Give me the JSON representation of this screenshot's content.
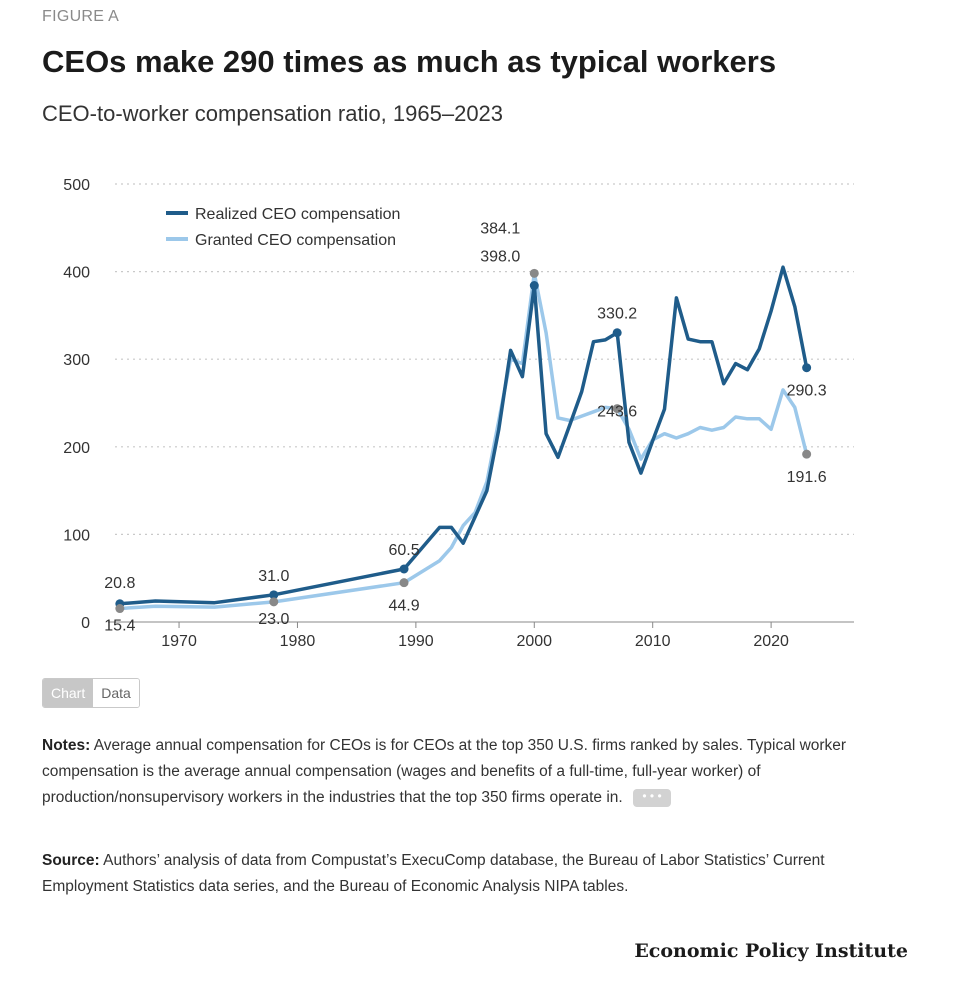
{
  "header": {
    "figure_label": "FIGURE A",
    "title": "CEOs make 290 times as much as typical workers",
    "subtitle": "CEO-to-worker compensation ratio, 1965–2023"
  },
  "chart_data": {
    "type": "line",
    "title": "CEOs make 290 times as much as typical workers",
    "subtitle": "CEO-to-worker compensation ratio, 1965–2023",
    "xlabel": "",
    "ylabel": "",
    "xlim": [
      1964,
      2027
    ],
    "ylim": [
      0,
      500
    ],
    "y_ticks": [
      0,
      100,
      200,
      300,
      400,
      500
    ],
    "x_ticks": [
      1970,
      1980,
      1990,
      2000,
      2010,
      2020
    ],
    "grid": true,
    "legend_position": "top-left",
    "series": [
      {
        "name": "Realized CEO compensation",
        "color": "#1f5c8a",
        "x": [
          1965,
          1968,
          1973,
          1978,
          1989,
          1992,
          1993,
          1994,
          1995,
          1996,
          1997,
          1998,
          1999,
          2000,
          2001,
          2002,
          2003,
          2004,
          2005,
          2006,
          2007,
          2008,
          2009,
          2010,
          2011,
          2012,
          2013,
          2014,
          2015,
          2016,
          2017,
          2018,
          2019,
          2020,
          2021,
          2022,
          2023
        ],
        "values": [
          20.8,
          24,
          22,
          31.0,
          60.5,
          108,
          108,
          90,
          120,
          150,
          220,
          310,
          280,
          384.1,
          215,
          188,
          225,
          263,
          320,
          322,
          330.2,
          205,
          170,
          207,
          243,
          370,
          323,
          320,
          320,
          272,
          295,
          288,
          312,
          355,
          405,
          360,
          290.3
        ]
      },
      {
        "name": "Granted CEO compensation",
        "color": "#9cc8ea",
        "x": [
          1965,
          1968,
          1973,
          1978,
          1989,
          1992,
          1993,
          1994,
          1995,
          1996,
          1997,
          1998,
          1999,
          2000,
          2001,
          2002,
          2003,
          2004,
          2005,
          2006,
          2007,
          2008,
          2009,
          2010,
          2011,
          2012,
          2013,
          2014,
          2015,
          2016,
          2017,
          2018,
          2019,
          2020,
          2021,
          2022,
          2023
        ],
        "values": [
          15.4,
          18,
          17,
          23.0,
          44.9,
          70,
          85,
          110,
          125,
          160,
          230,
          300,
          295,
          398.0,
          330,
          233,
          230,
          235,
          240,
          245,
          243.6,
          220,
          186,
          208,
          215,
          210,
          215,
          222,
          219,
          222,
          234,
          232,
          232,
          220,
          265,
          245,
          191.6
        ]
      }
    ],
    "annotations": [
      {
        "label": "20.8",
        "series": 0,
        "x": 1965
      },
      {
        "label": "15.4",
        "series": 1,
        "x": 1965
      },
      {
        "label": "31.0",
        "series": 0,
        "x": 1978
      },
      {
        "label": "23.0",
        "series": 1,
        "x": 1978
      },
      {
        "label": "60.5",
        "series": 0,
        "x": 1989
      },
      {
        "label": "44.9",
        "series": 1,
        "x": 1989
      },
      {
        "label": "384.1",
        "series": 0,
        "x": 2000
      },
      {
        "label": "398.0",
        "series": 1,
        "x": 2000
      },
      {
        "label": "330.2",
        "series": 0,
        "x": 2007
      },
      {
        "label": "243.6",
        "series": 1,
        "x": 2007
      },
      {
        "label": "290.3",
        "series": 0,
        "x": 2023
      },
      {
        "label": "191.6",
        "series": 1,
        "x": 2023
      }
    ]
  },
  "controls": {
    "chart_label": "Chart",
    "data_label": "Data"
  },
  "notes": {
    "label": "Notes:",
    "text": "Average annual compensation for CEOs is for CEOs at the top 350 U.S. firms ranked by sales. Typical worker compensation is the average annual compensation (wages and benefits of a full-time, full-year worker) of production/nonsupervisory workers in the industries that the top 350 firms operate in.",
    "more_label": "• • •"
  },
  "source": {
    "label": "Source:",
    "text": "Authors’ analysis of data from Compustat’s ExecuComp database, the Bureau of Labor Statistics’ Current Employment Statistics data series, and the Bureau of Economic Analysis NIPA tables."
  },
  "branding": {
    "org_name": "Economic Policy Institute"
  }
}
